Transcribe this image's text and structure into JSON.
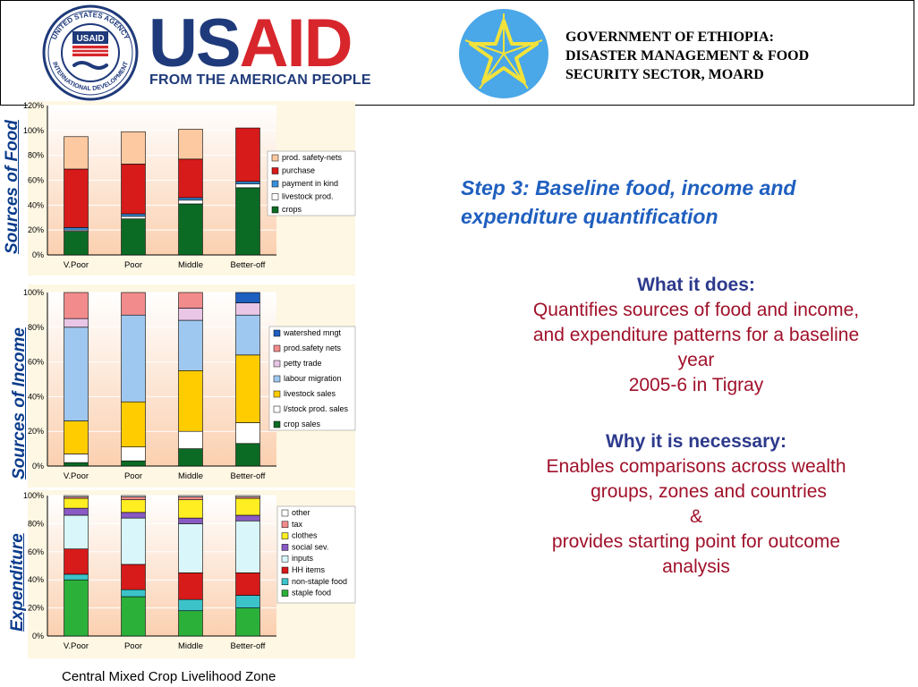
{
  "header": {
    "seal_top_text": "UNITED STATES AGENCY",
    "seal_bottom_text": "INTERNATIONAL DEVELOPMENT",
    "seal_center_text": "USAID",
    "logo_us": "US",
    "logo_aid": "AID",
    "tagline": "FROM THE AMERICAN PEOPLE",
    "gov_line1": "GOVERNMENT OF ETHIOPIA:",
    "gov_line2": "DISASTER MANAGEMENT & FOOD",
    "gov_line3": "SECURITY SECTOR, MOARD"
  },
  "labels": {
    "food": "Sources of Food",
    "income": "Sources of Income",
    "expenditure": "Expenditure"
  },
  "right": {
    "step_title_line1": "Step 3: Baseline food, income and",
    "step_title_line2": "expenditure quantification",
    "what_head": "What it does:",
    "what_body1": "Quantifies sources of food and income,",
    "what_body2": "and expenditure patterns for a baseline",
    "what_body3": "year",
    "what_body4": "2005-6 in Tigray",
    "why_head": "Why it is necessary:",
    "why_body1": "Enables comparisons across wealth",
    "why_body2": "groups, zones and countries",
    "why_body3": "&",
    "why_body4": "provides starting point for outcome",
    "why_body5": "analysis"
  },
  "caption": "Central Mixed Crop Livelihood Zone",
  "chart_data": [
    {
      "type": "bar",
      "stacked": true,
      "categories": [
        "V.Poor",
        "Poor",
        "Middle",
        "Better-off"
      ],
      "y_ticks": [
        "0%",
        "20%",
        "40%",
        "60%",
        "80%",
        "100%",
        "120%"
      ],
      "ylim": [
        0,
        120
      ],
      "legend_position": "right",
      "series": [
        {
          "name": "crops",
          "color": "#0b6b24",
          "values": [
            19,
            29,
            41,
            54
          ]
        },
        {
          "name": "livestock prod.",
          "color": "#ffffff",
          "values": [
            1,
            2,
            3,
            3
          ]
        },
        {
          "name": "payment in kind",
          "color": "#3b8fd9",
          "values": [
            2,
            2,
            2,
            2
          ]
        },
        {
          "name": "purchase",
          "color": "#d71a1a",
          "values": [
            47,
            40,
            31,
            43
          ]
        },
        {
          "name": "prod. safety-nets",
          "color": "#fdc9a0",
          "values": [
            26,
            26,
            24,
            0
          ]
        }
      ]
    },
    {
      "type": "bar",
      "stacked": true,
      "categories": [
        "V.Poor",
        "Poor",
        "Middle",
        "Better-off"
      ],
      "y_ticks": [
        "0%",
        "20%",
        "40%",
        "60%",
        "80%",
        "100%"
      ],
      "ylim": [
        0,
        100
      ],
      "legend_position": "right",
      "series": [
        {
          "name": "crop sales",
          "color": "#0b6b24",
          "values": [
            2,
            3,
            10,
            13
          ]
        },
        {
          "name": "l/stock prod. sales",
          "color": "#ffffff",
          "values": [
            5,
            8,
            10,
            12
          ]
        },
        {
          "name": "livestock sales",
          "color": "#ffcc00",
          "values": [
            19,
            26,
            35,
            39
          ]
        },
        {
          "name": "labour migration",
          "color": "#9fc8f0",
          "values": [
            54,
            50,
            29,
            23
          ]
        },
        {
          "name": "petty trade",
          "color": "#e9c6e6",
          "values": [
            5,
            0,
            7,
            7
          ]
        },
        {
          "name": "prod.safety nets",
          "color": "#f28c8c",
          "values": [
            15,
            13,
            9,
            0
          ]
        },
        {
          "name": "watershed mngt",
          "color": "#1f5fbf",
          "values": [
            0,
            0,
            0,
            6
          ]
        }
      ]
    },
    {
      "type": "bar",
      "stacked": true,
      "categories": [
        "V.Poor",
        "Poor",
        "Middle",
        "Better-off"
      ],
      "y_ticks": [
        "0%",
        "20%",
        "40%",
        "60%",
        "80%",
        "100%"
      ],
      "ylim": [
        0,
        100
      ],
      "legend_position": "right",
      "series": [
        {
          "name": "staple food",
          "color": "#2bb03a",
          "values": [
            40,
            28,
            18,
            20
          ]
        },
        {
          "name": "non-staple food",
          "color": "#3cc3c9",
          "values": [
            4,
            5,
            8,
            9
          ]
        },
        {
          "name": "HH items",
          "color": "#d71a1a",
          "values": [
            18,
            18,
            19,
            16
          ]
        },
        {
          "name": "inputs",
          "color": "#d9f7fb",
          "values": [
            24,
            33,
            35,
            37
          ]
        },
        {
          "name": "social sev.",
          "color": "#8a5ac4",
          "values": [
            5,
            4,
            4,
            4
          ]
        },
        {
          "name": "clothes",
          "color": "#ffee22",
          "values": [
            7,
            9,
            13,
            12
          ]
        },
        {
          "name": "tax",
          "color": "#f28c8c",
          "values": [
            1,
            2,
            2,
            1
          ]
        },
        {
          "name": "other",
          "color": "#ffffff",
          "values": [
            1,
            1,
            1,
            1
          ]
        }
      ]
    }
  ]
}
